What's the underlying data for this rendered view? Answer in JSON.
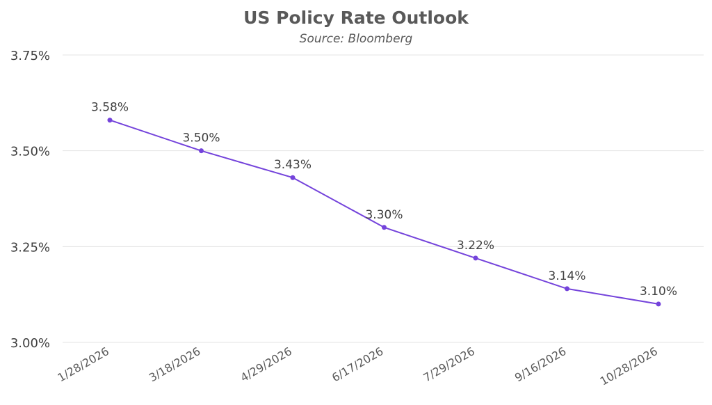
{
  "chart_data": {
    "type": "line",
    "title": "US Policy Rate Outlook",
    "subtitle": "Source: Bloomberg",
    "xlabel": "",
    "ylabel": "",
    "categories": [
      "1/28/2026",
      "3/18/2026",
      "4/29/2026",
      "6/17/2026",
      "7/29/2026",
      "9/16/2026",
      "10/28/2026"
    ],
    "series": [
      {
        "values": [
          3.58,
          3.5,
          3.43,
          3.3,
          3.22,
          3.14,
          3.1
        ],
        "data_labels": [
          "3.58%",
          "3.50%",
          "3.43%",
          "3.30%",
          "3.22%",
          "3.14%",
          "3.10%"
        ]
      }
    ],
    "ylim": [
      3.0,
      3.75
    ],
    "yticks": [
      3.0,
      3.25,
      3.5,
      3.75
    ],
    "ytick_labels": [
      "3.00%",
      "3.25%",
      "3.50%",
      "3.75%"
    ],
    "grid": true,
    "legend": "none",
    "line_color": "#7443db"
  }
}
